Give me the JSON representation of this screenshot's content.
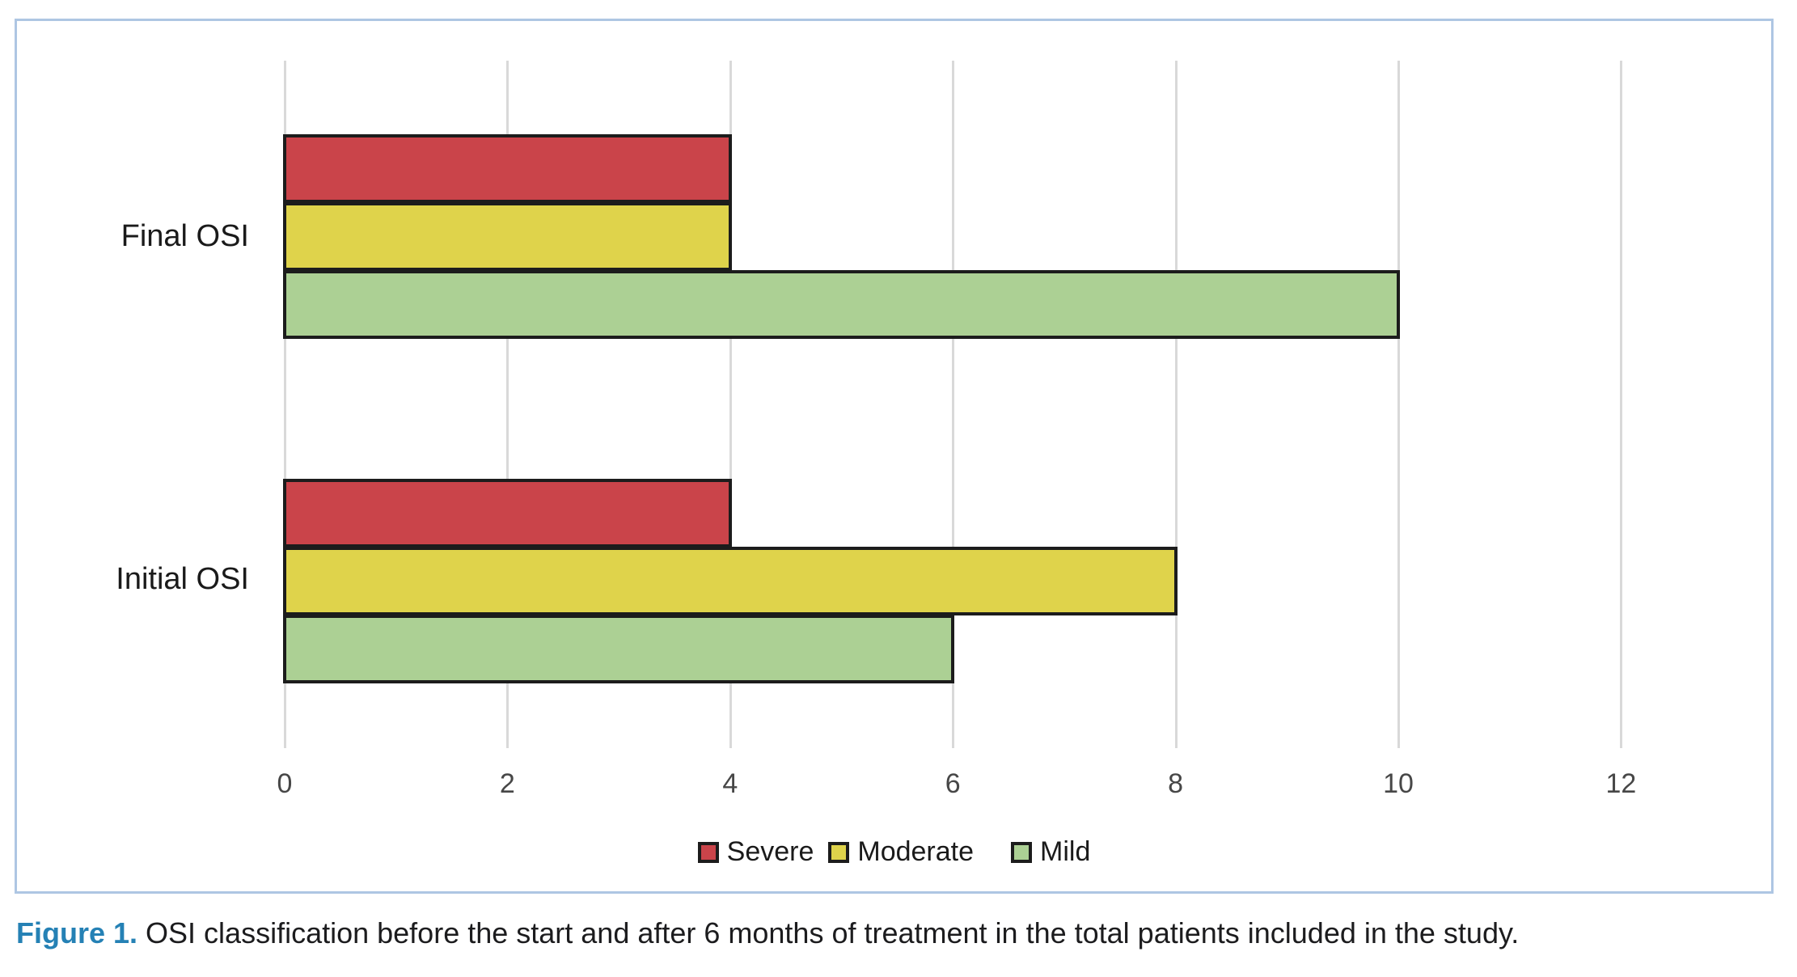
{
  "figure": {
    "caption_label": "Figure 1.",
    "caption_text": " OSI classification before the start and after 6 months of treatment in the total patients included in the study."
  },
  "chart_data": {
    "type": "bar",
    "orientation": "horizontal",
    "title": "",
    "xlabel": "",
    "ylabel": "",
    "categories": [
      "Final OSI",
      "Initial OSI"
    ],
    "series": [
      {
        "name": "Severe",
        "color": "#CA444A",
        "values": [
          4,
          4
        ]
      },
      {
        "name": "Moderate",
        "color": "#DFD34B",
        "values": [
          4,
          8
        ]
      },
      {
        "name": "Mild",
        "color": "#ACD094",
        "values": [
          10,
          6
        ]
      }
    ],
    "x_ticks": [
      0,
      2,
      4,
      6,
      8,
      10,
      12
    ],
    "xlim": [
      0,
      12
    ],
    "grid": true,
    "legend_position": "bottom",
    "legend_labels": [
      "Severe",
      "Moderate",
      "Mild"
    ],
    "style": {
      "bar_border_color": "#1C1C1C",
      "gridline_color": "#D9D9D9",
      "panel_border_color": "#AEC6E3",
      "tick_label_color": "#474747",
      "category_label_color": "#1A1A1A",
      "caption_accent_color": "#2581B5"
    }
  }
}
